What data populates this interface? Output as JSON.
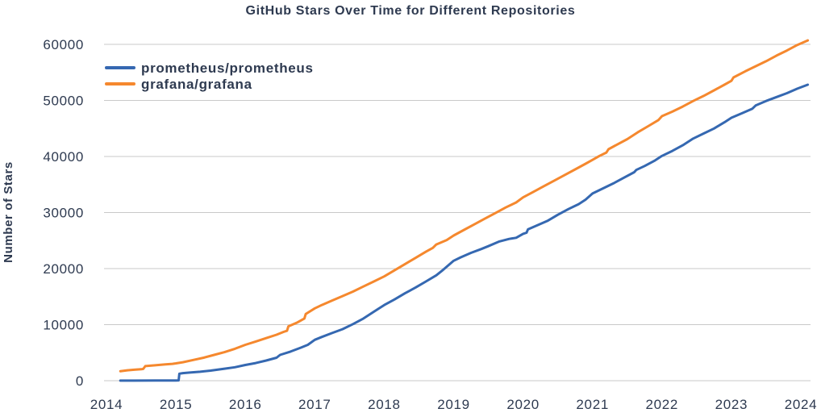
{
  "chart_data": {
    "type": "line",
    "title": "GitHub Stars Over Time for Different Repositories",
    "xlabel": "",
    "ylabel": "Number of Stars",
    "xlim": [
      2013.95,
      2024.16
    ],
    "ylim": [
      0,
      60000
    ],
    "x_ticks": [
      2014,
      2015,
      2016,
      2017,
      2018,
      2019,
      2020,
      2021,
      2022,
      2023,
      2024
    ],
    "y_ticks": [
      0,
      10000,
      20000,
      30000,
      40000,
      50000,
      60000
    ],
    "grid": "horizontal-only",
    "grid_color": "#C9C9C9",
    "text_color": "#2E3A50",
    "background_color": "#FFFFFF",
    "legend_position": "upper-left-inside",
    "series": [
      {
        "name": "prometheus/prometheus",
        "color": "#3568B1",
        "points": [
          [
            2014.2,
            10
          ],
          [
            2014.4,
            20
          ],
          [
            2014.7,
            30
          ],
          [
            2015.0,
            50
          ],
          [
            2015.04,
            60
          ],
          [
            2015.05,
            1250
          ],
          [
            2015.1,
            1350
          ],
          [
            2015.2,
            1450
          ],
          [
            2015.35,
            1600
          ],
          [
            2015.5,
            1800
          ],
          [
            2015.7,
            2150
          ],
          [
            2015.85,
            2400
          ],
          [
            2016.0,
            2800
          ],
          [
            2016.15,
            3150
          ],
          [
            2016.3,
            3600
          ],
          [
            2016.45,
            4100
          ],
          [
            2016.5,
            4600
          ],
          [
            2016.65,
            5200
          ],
          [
            2016.8,
            5900
          ],
          [
            2016.9,
            6400
          ],
          [
            2017.0,
            7300
          ],
          [
            2017.1,
            7800
          ],
          [
            2017.25,
            8500
          ],
          [
            2017.4,
            9200
          ],
          [
            2017.55,
            10100
          ],
          [
            2017.7,
            11100
          ],
          [
            2017.85,
            12300
          ],
          [
            2018.0,
            13500
          ],
          [
            2018.15,
            14500
          ],
          [
            2018.3,
            15600
          ],
          [
            2018.45,
            16600
          ],
          [
            2018.6,
            17700
          ],
          [
            2018.75,
            18800
          ],
          [
            2018.85,
            19800
          ],
          [
            2019.0,
            21400
          ],
          [
            2019.1,
            22000
          ],
          [
            2019.25,
            22800
          ],
          [
            2019.4,
            23500
          ],
          [
            2019.5,
            24000
          ],
          [
            2019.65,
            24800
          ],
          [
            2019.8,
            25300
          ],
          [
            2019.9,
            25500
          ],
          [
            2020.0,
            26200
          ],
          [
            2020.05,
            26400
          ],
          [
            2020.07,
            27000
          ],
          [
            2020.2,
            27700
          ],
          [
            2020.35,
            28500
          ],
          [
            2020.5,
            29600
          ],
          [
            2020.65,
            30600
          ],
          [
            2020.8,
            31500
          ],
          [
            2020.9,
            32300
          ],
          [
            2021.0,
            33400
          ],
          [
            2021.15,
            34300
          ],
          [
            2021.3,
            35200
          ],
          [
            2021.45,
            36200
          ],
          [
            2021.6,
            37200
          ],
          [
            2021.63,
            37600
          ],
          [
            2021.75,
            38300
          ],
          [
            2021.9,
            39300
          ],
          [
            2022.0,
            40100
          ],
          [
            2022.15,
            41000
          ],
          [
            2022.3,
            42000
          ],
          [
            2022.45,
            43200
          ],
          [
            2022.6,
            44100
          ],
          [
            2022.75,
            45000
          ],
          [
            2022.9,
            46100
          ],
          [
            2023.0,
            46900
          ],
          [
            2023.15,
            47700
          ],
          [
            2023.3,
            48500
          ],
          [
            2023.35,
            49100
          ],
          [
            2023.5,
            49900
          ],
          [
            2023.65,
            50600
          ],
          [
            2023.8,
            51300
          ],
          [
            2023.95,
            52100
          ],
          [
            2024.1,
            52800
          ]
        ]
      },
      {
        "name": "grafana/grafana",
        "color": "#F5882E",
        "points": [
          [
            2014.2,
            1700
          ],
          [
            2014.3,
            1850
          ],
          [
            2014.4,
            1950
          ],
          [
            2014.5,
            2050
          ],
          [
            2014.53,
            2100
          ],
          [
            2014.56,
            2600
          ],
          [
            2014.7,
            2750
          ],
          [
            2014.85,
            2900
          ],
          [
            2014.95,
            3000
          ],
          [
            2015.0,
            3100
          ],
          [
            2015.1,
            3300
          ],
          [
            2015.25,
            3700
          ],
          [
            2015.4,
            4100
          ],
          [
            2015.55,
            4600
          ],
          [
            2015.7,
            5100
          ],
          [
            2015.85,
            5700
          ],
          [
            2016.0,
            6400
          ],
          [
            2016.15,
            7000
          ],
          [
            2016.3,
            7600
          ],
          [
            2016.45,
            8200
          ],
          [
            2016.55,
            8700
          ],
          [
            2016.6,
            8900
          ],
          [
            2016.62,
            9700
          ],
          [
            2016.75,
            10400
          ],
          [
            2016.85,
            11100
          ],
          [
            2016.87,
            11900
          ],
          [
            2017.0,
            12900
          ],
          [
            2017.1,
            13500
          ],
          [
            2017.25,
            14300
          ],
          [
            2017.4,
            15100
          ],
          [
            2017.55,
            15900
          ],
          [
            2017.7,
            16800
          ],
          [
            2017.85,
            17700
          ],
          [
            2018.0,
            18600
          ],
          [
            2018.15,
            19700
          ],
          [
            2018.3,
            20800
          ],
          [
            2018.45,
            21900
          ],
          [
            2018.6,
            23000
          ],
          [
            2018.7,
            23700
          ],
          [
            2018.75,
            24300
          ],
          [
            2018.9,
            25100
          ],
          [
            2019.0,
            25900
          ],
          [
            2019.15,
            26900
          ],
          [
            2019.3,
            27900
          ],
          [
            2019.45,
            28900
          ],
          [
            2019.6,
            29900
          ],
          [
            2019.75,
            30900
          ],
          [
            2019.9,
            31800
          ],
          [
            2020.0,
            32700
          ],
          [
            2020.15,
            33700
          ],
          [
            2020.3,
            34700
          ],
          [
            2020.45,
            35700
          ],
          [
            2020.6,
            36700
          ],
          [
            2020.75,
            37700
          ],
          [
            2020.9,
            38700
          ],
          [
            2021.0,
            39400
          ],
          [
            2021.1,
            40100
          ],
          [
            2021.2,
            40700
          ],
          [
            2021.23,
            41300
          ],
          [
            2021.35,
            42100
          ],
          [
            2021.5,
            43100
          ],
          [
            2021.65,
            44300
          ],
          [
            2021.8,
            45400
          ],
          [
            2021.95,
            46500
          ],
          [
            2022.0,
            47200
          ],
          [
            2022.15,
            48000
          ],
          [
            2022.3,
            48900
          ],
          [
            2022.45,
            49900
          ],
          [
            2022.6,
            50800
          ],
          [
            2022.75,
            51800
          ],
          [
            2022.9,
            52800
          ],
          [
            2023.0,
            53500
          ],
          [
            2023.03,
            54100
          ],
          [
            2023.2,
            55200
          ],
          [
            2023.35,
            56100
          ],
          [
            2023.5,
            57000
          ],
          [
            2023.65,
            58000
          ],
          [
            2023.8,
            58900
          ],
          [
            2023.95,
            59900
          ],
          [
            2024.1,
            60700
          ]
        ]
      }
    ]
  }
}
